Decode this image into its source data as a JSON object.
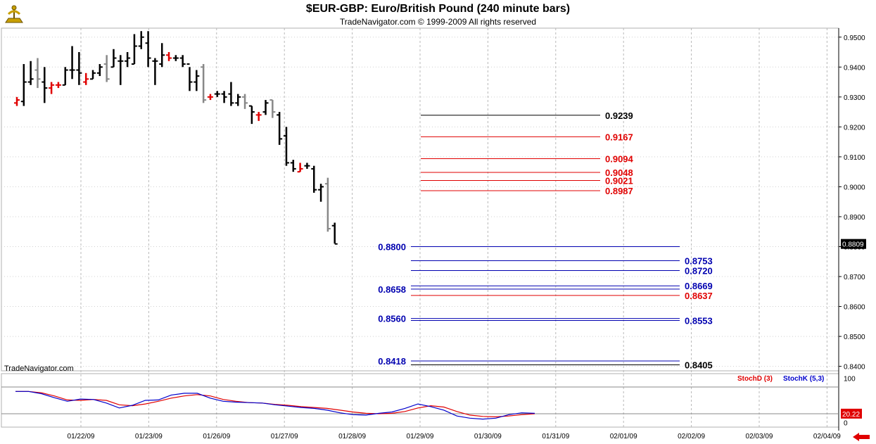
{
  "header": {
    "title": "$EUR-GBP:  Euro/British Pound  (240 minute bars)",
    "subtitle": "TradeNavigator.com © 1999-2009 All rights reserved",
    "watermark": "TradeNavigator.com"
  },
  "colors": {
    "up_bar": "#000000",
    "down_bar": "#888888",
    "red_bar": "#e00000",
    "level_black": "#000000",
    "level_red": "#e00000",
    "level_blue": "#0000b0",
    "stoch_d": "#e00000",
    "stoch_k": "#0000cc",
    "last_price_bg": "#000000",
    "stoch_last_bg": "#e00000"
  },
  "chart_data": [
    {
      "type": "ohlc",
      "title": "$EUR-GBP:  Euro/British Pound  (240 minute bars)",
      "last_price": "0.8809",
      "ylim": [
        0.8385,
        0.953
      ],
      "y_ticks": [
        "0.8400",
        "0.8500",
        "0.8600",
        "0.8700",
        "0.8800",
        "0.8900",
        "0.9000",
        "0.9100",
        "0.9200",
        "0.9300",
        "0.9400",
        "0.9500"
      ],
      "x_ticks": [
        "01/22/09",
        "01/23/09",
        "01/26/09",
        "01/27/09",
        "01/28/09",
        "01/29/09",
        "01/30/09",
        "01/31/09",
        "02/01/09",
        "02/02/09",
        "02/03/09",
        "02/04/09"
      ],
      "grid": true,
      "bars": [
        {
          "o": 0.928,
          "h": 0.93,
          "l": 0.927,
          "c": 0.929,
          "k": "r"
        },
        {
          "o": 0.9285,
          "h": 0.941,
          "l": 0.927,
          "c": 0.935,
          "k": "u"
        },
        {
          "o": 0.935,
          "h": 0.942,
          "l": 0.934,
          "c": 0.936,
          "k": "u"
        },
        {
          "o": 0.939,
          "h": 0.943,
          "l": 0.933,
          "c": 0.936,
          "k": "d"
        },
        {
          "o": 0.935,
          "h": 0.94,
          "l": 0.928,
          "c": 0.933,
          "k": "u"
        },
        {
          "o": 0.933,
          "h": 0.935,
          "l": 0.931,
          "c": 0.934,
          "k": "r"
        },
        {
          "o": 0.934,
          "h": 0.935,
          "l": 0.933,
          "c": 0.934,
          "k": "r"
        },
        {
          "o": 0.934,
          "h": 0.94,
          "l": 0.934,
          "c": 0.939,
          "k": "u"
        },
        {
          "o": 0.939,
          "h": 0.947,
          "l": 0.936,
          "c": 0.939,
          "k": "u"
        },
        {
          "o": 0.939,
          "h": 0.945,
          "l": 0.934,
          "c": 0.938,
          "k": "u"
        },
        {
          "o": 0.935,
          "h": 0.938,
          "l": 0.934,
          "c": 0.936,
          "k": "r"
        },
        {
          "o": 0.936,
          "h": 0.939,
          "l": 0.936,
          "c": 0.938,
          "k": "u"
        },
        {
          "o": 0.938,
          "h": 0.941,
          "l": 0.937,
          "c": 0.94,
          "k": "u"
        },
        {
          "o": 0.941,
          "h": 0.944,
          "l": 0.935,
          "c": 0.936,
          "k": "d"
        },
        {
          "o": 0.94,
          "h": 0.946,
          "l": 0.94,
          "c": 0.943,
          "k": "u"
        },
        {
          "o": 0.942,
          "h": 0.944,
          "l": 0.934,
          "c": 0.942,
          "k": "u"
        },
        {
          "o": 0.942,
          "h": 0.945,
          "l": 0.94,
          "c": 0.943,
          "k": "u"
        },
        {
          "o": 0.941,
          "h": 0.951,
          "l": 0.941,
          "c": 0.947,
          "k": "u"
        },
        {
          "o": 0.947,
          "h": 0.952,
          "l": 0.946,
          "c": 0.95,
          "k": "u"
        },
        {
          "o": 0.948,
          "h": 0.952,
          "l": 0.94,
          "c": 0.943,
          "k": "u"
        },
        {
          "o": 0.942,
          "h": 0.943,
          "l": 0.934,
          "c": 0.942,
          "k": "u"
        },
        {
          "o": 0.941,
          "h": 0.948,
          "l": 0.94,
          "c": 0.944,
          "k": "u"
        },
        {
          "o": 0.944,
          "h": 0.945,
          "l": 0.942,
          "c": 0.943,
          "k": "r"
        },
        {
          "o": 0.943,
          "h": 0.944,
          "l": 0.942,
          "c": 0.943,
          "k": "u"
        },
        {
          "o": 0.943,
          "h": 0.944,
          "l": 0.94,
          "c": 0.941,
          "k": "u"
        },
        {
          "o": 0.941,
          "h": 0.94,
          "l": 0.932,
          "c": 0.935,
          "k": "u"
        },
        {
          "o": 0.935,
          "h": 0.939,
          "l": 0.932,
          "c": 0.937,
          "k": "u"
        },
        {
          "o": 0.94,
          "h": 0.941,
          "l": 0.928,
          "c": 0.929,
          "k": "d"
        },
        {
          "o": 0.93,
          "h": 0.931,
          "l": 0.929,
          "c": 0.93,
          "k": "r"
        },
        {
          "o": 0.931,
          "h": 0.932,
          "l": 0.93,
          "c": 0.931,
          "k": "u"
        },
        {
          "o": 0.931,
          "h": 0.932,
          "l": 0.928,
          "c": 0.93,
          "k": "u"
        },
        {
          "o": 0.931,
          "h": 0.935,
          "l": 0.927,
          "c": 0.928,
          "k": "u"
        },
        {
          "o": 0.928,
          "h": 0.931,
          "l": 0.927,
          "c": 0.93,
          "k": "u"
        },
        {
          "o": 0.93,
          "h": 0.931,
          "l": 0.926,
          "c": 0.928,
          "k": "d"
        },
        {
          "o": 0.927,
          "h": 0.927,
          "l": 0.921,
          "c": 0.925,
          "k": "u"
        },
        {
          "o": 0.924,
          "h": 0.925,
          "l": 0.922,
          "c": 0.924,
          "k": "r"
        },
        {
          "o": 0.925,
          "h": 0.929,
          "l": 0.924,
          "c": 0.928,
          "k": "u"
        },
        {
          "o": 0.929,
          "h": 0.929,
          "l": 0.923,
          "c": 0.925,
          "k": "d"
        },
        {
          "o": 0.924,
          "h": 0.925,
          "l": 0.914,
          "c": 0.916,
          "k": "u"
        },
        {
          "o": 0.917,
          "h": 0.92,
          "l": 0.907,
          "c": 0.908,
          "k": "u"
        },
        {
          "o": 0.908,
          "h": 0.909,
          "l": 0.905,
          "c": 0.906,
          "k": "u"
        },
        {
          "o": 0.905,
          "h": 0.908,
          "l": 0.905,
          "c": 0.906,
          "k": "r"
        },
        {
          "o": 0.907,
          "h": 0.908,
          "l": 0.906,
          "c": 0.907,
          "k": "u"
        },
        {
          "o": 0.906,
          "h": 0.907,
          "l": 0.898,
          "c": 0.899,
          "k": "u"
        },
        {
          "o": 0.899,
          "h": 0.901,
          "l": 0.895,
          "c": 0.9,
          "k": "u"
        },
        {
          "o": 0.901,
          "h": 0.903,
          "l": 0.885,
          "c": 0.886,
          "k": "d"
        },
        {
          "o": 0.887,
          "h": 0.888,
          "l": 0.881,
          "c": 0.8809,
          "k": "u"
        }
      ],
      "levels": [
        {
          "value": 0.9239,
          "label": "0.9239",
          "color": "black",
          "from": 0.9,
          "to": 1.8,
          "label_side": "right"
        },
        {
          "value": 0.9167,
          "label": "0.9167",
          "color": "red",
          "from": 0.9,
          "to": 1.8,
          "label_side": "right"
        },
        {
          "value": 0.9094,
          "label": "0.9094",
          "color": "red",
          "from": 0.9,
          "to": 1.8,
          "label_side": "right"
        },
        {
          "value": 0.9048,
          "label": "0.9048",
          "color": "red",
          "from": 0.9,
          "to": 1.8,
          "label_side": "right"
        },
        {
          "value": 0.9021,
          "label": "0.9021",
          "color": "red",
          "from": 0.9,
          "to": 1.8,
          "label_side": "right"
        },
        {
          "value": 0.8987,
          "label": "0.8987",
          "color": "red",
          "from": 0.9,
          "to": 1.8,
          "label_side": "right"
        },
        {
          "value": 0.88,
          "label": "0.8800",
          "color": "blue",
          "from": 0.0,
          "to": 4.0,
          "label_side": "left"
        },
        {
          "value": 0.8753,
          "label": "0.8753",
          "color": "blue",
          "from": 0.0,
          "to": 4.0,
          "label_side": "right"
        },
        {
          "value": 0.872,
          "label": "0.8720",
          "color": "blue",
          "from": 0.0,
          "to": 4.0,
          "label_side": "right"
        },
        {
          "value": 0.8669,
          "label": "0.8669",
          "color": "blue",
          "from": 0.0,
          "to": 4.0,
          "label_side": "right"
        },
        {
          "value": 0.8658,
          "label": "0.8658",
          "color": "blue",
          "from": 0.0,
          "to": 4.0,
          "label_side": "left"
        },
        {
          "value": 0.8637,
          "label": "0.8637",
          "color": "red",
          "from": 0.0,
          "to": 4.0,
          "label_side": "right"
        },
        {
          "value": 0.856,
          "label": "0.8560",
          "color": "blue",
          "from": 0.0,
          "to": 4.0,
          "label_side": "left"
        },
        {
          "value": 0.8553,
          "label": "0.8553",
          "color": "blue",
          "from": 0.0,
          "to": 4.0,
          "label_side": "right"
        },
        {
          "value": 0.8418,
          "label": "0.8418",
          "color": "blue",
          "from": 0.0,
          "to": 4.0,
          "label_side": "left"
        },
        {
          "value": 0.8405,
          "label": "0.8405",
          "color": "black",
          "from": 0.0,
          "to": 4.0,
          "label_side": "right"
        }
      ]
    },
    {
      "type": "line",
      "title": "",
      "ylim": [
        -10,
        110
      ],
      "y_ticks": [
        "100",
        "0"
      ],
      "reference_lines": [
        80,
        20
      ],
      "last_value": "20.22",
      "series": [
        {
          "name": "StochD (3)",
          "values": [
            70,
            70,
            67,
            60,
            51,
            50,
            52,
            50,
            40,
            38,
            42,
            48,
            55,
            60,
            63,
            60,
            52,
            48,
            45,
            44,
            41,
            39,
            36,
            34,
            32,
            28,
            24,
            21,
            20,
            21,
            25,
            33,
            38,
            35,
            25,
            17,
            14,
            13,
            15,
            18,
            20
          ]
        },
        {
          "name": "StochK (5,3)",
          "values": [
            70,
            70,
            65,
            56,
            48,
            53,
            52,
            44,
            33,
            39,
            50,
            51,
            62,
            66,
            66,
            55,
            48,
            46,
            45,
            44,
            40,
            37,
            34,
            32,
            28,
            22,
            18,
            17,
            21,
            24,
            32,
            42,
            36,
            28,
            15,
            10,
            8,
            10,
            18,
            22,
            21
          ]
        }
      ]
    }
  ]
}
